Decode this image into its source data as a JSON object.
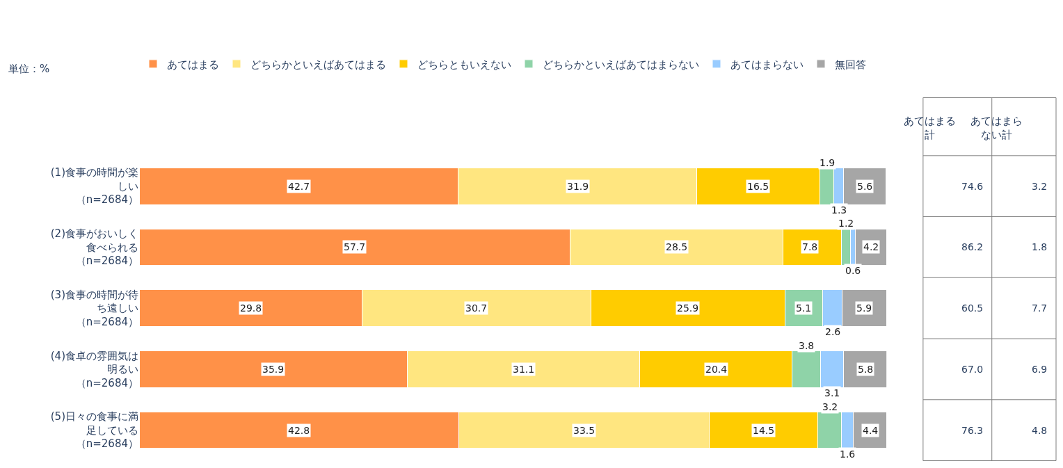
{
  "chart_data": [
    {
      "type": "bar",
      "orientation": "horizontal",
      "stacked": true,
      "data_labels": true,
      "legend": "top",
      "tick_labels": "y",
      "xlim": [
        0,
        100
      ],
      "annotations": [
        "単位：%"
      ],
      "categories": [
        "(1)食事の時間が楽しい（n=2684）",
        "(2)食事がおいしく食べられる（n=2684）",
        "(3)食事の時間が待ち遠しい（n=2684）",
        "(4)食卓の雰囲気は明るい（n=2684）",
        "(5)日々の食事に満足している（n=2684）"
      ],
      "series": [
        {
          "name": "あてはまる",
          "color": "#ff9148",
          "values": [
            42.7,
            57.7,
            29.8,
            35.9,
            42.8
          ]
        },
        {
          "name": "どちらかといえばあてはまる",
          "color": "#ffe680",
          "values": [
            31.9,
            28.5,
            30.7,
            31.1,
            33.5
          ]
        },
        {
          "name": "どちらともいえない",
          "color": "#ffcc00",
          "values": [
            16.5,
            7.8,
            25.9,
            20.4,
            14.5
          ]
        },
        {
          "name": "どちらかといえばあてはまらない",
          "color": "#8fd3a8",
          "values": [
            1.9,
            1.2,
            5.1,
            3.8,
            3.2
          ]
        },
        {
          "name": "あてはまらない",
          "color": "#99ccff",
          "values": [
            1.3,
            0.6,
            2.6,
            3.1,
            1.6
          ]
        },
        {
          "name": "無回答",
          "color": "#a6a6a6",
          "values": [
            5.6,
            4.2,
            5.9,
            5.8,
            4.4
          ]
        }
      ]
    },
    {
      "type": "other",
      "categories": [
        "あてはまる計",
        "あてはまらない計"
      ],
      "series": [
        {
          "values": [
            74.6,
            3.2
          ],
          "value_labels": [
            "74.6",
            "3.2"
          ]
        },
        {
          "values": [
            86.2,
            1.8
          ],
          "value_labels": [
            "86.2",
            "1.8"
          ]
        },
        {
          "values": [
            60.5,
            7.7
          ],
          "value_labels": [
            "60.5",
            "7.7"
          ]
        },
        {
          "values": [
            67.0,
            6.9
          ],
          "value_labels": [
            "67.0",
            "6.9"
          ]
        },
        {
          "values": [
            76.3,
            4.8
          ],
          "value_labels": [
            "76.3",
            "4.8"
          ]
        }
      ]
    }
  ]
}
